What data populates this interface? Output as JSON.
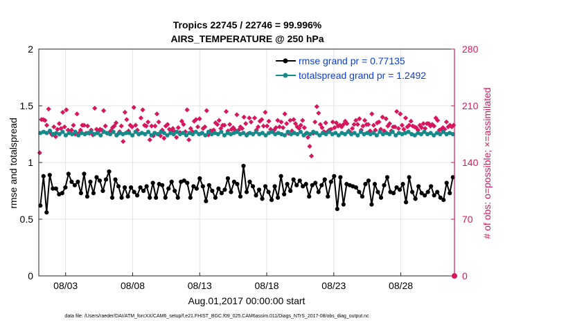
{
  "chart_data": {
    "type": "line",
    "title": "Tropics 22745 / 22746 = 99.996%",
    "subtitle": "AIRS_TEMPERATURE @ 250 hPa",
    "xlabel": "Aug.01,2017 00:00:00 start",
    "ylabel": "rmse and totalspread",
    "ylabel_right": "# of obs: o=possible; ×=assimilated",
    "footer": "data file: /Users/raeder/DAI/ATM_forcXX/CAM6_setup/f.e21.FHIST_BGC.f09_025.CAM6assim.011/Diags_NTrS_2017-08/obs_diag_output.nc",
    "x_tick_labels": [
      "08/03",
      "08/08",
      "08/13",
      "08/18",
      "08/23",
      "08/28"
    ],
    "x_tick_days": [
      3,
      8,
      13,
      18,
      23,
      28
    ],
    "xlim_days": [
      1,
      32
    ],
    "ylim": [
      0,
      2
    ],
    "y_ticks": [
      "0",
      "0.5",
      "1",
      "1.5",
      "2"
    ],
    "ylim_right": [
      0,
      280
    ],
    "y_ticks_right": [
      "0",
      "70",
      "140",
      "210",
      "280"
    ],
    "colors": {
      "rmse": "#000000",
      "spread": "#168a8a",
      "obs": "#d6175d",
      "legend_text": "#0b3ce8",
      "grid": "#e4e4e4"
    },
    "series": [
      {
        "name": "rmse grand pr = 0.77135",
        "axis": "left",
        "values": [
          0.62,
          0.88,
          0.56,
          0.89,
          0.77,
          0.77,
          0.72,
          0.73,
          0.78,
          0.9,
          0.83,
          0.8,
          0.83,
          0.73,
          0.9,
          0.7,
          0.83,
          0.73,
          0.87,
          0.84,
          0.75,
          0.85,
          0.92,
          0.69,
          0.85,
          0.79,
          0.69,
          0.78,
          0.7,
          0.78,
          0.74,
          0.71,
          0.78,
          0.75,
          0.79,
          0.69,
          0.82,
          0.69,
          0.81,
          0.8,
          0.69,
          0.77,
          0.83,
          0.75,
          0.69,
          0.83,
          0.84,
          0.82,
          0.69,
          0.79,
          0.77,
          0.86,
          0.79,
          0.66,
          0.8,
          0.75,
          0.69,
          0.77,
          0.73,
          0.76,
          0.86,
          0.74,
          0.83,
          0.81,
          0.7,
          0.97,
          0.74,
          0.83,
          0.79,
          0.71,
          0.76,
          0.68,
          0.79,
          0.74,
          0.67,
          0.79,
          0.69,
          0.88,
          0.72,
          0.81,
          0.75,
          0.85,
          0.8,
          0.84,
          0.79,
          0.81,
          0.7,
          0.8,
          0.82,
          0.74,
          0.8,
          0.85,
          0.7,
          0.83,
          0.88,
          0.59,
          0.87,
          0.63,
          0.81,
          0.8,
          0.79,
          0.78,
          0.74,
          0.7,
          0.81,
          0.84,
          0.63,
          0.81,
          0.74,
          0.69,
          0.8,
          0.87,
          0.74,
          0.73,
          0.78,
          0.76,
          0.81,
          0.65,
          0.87,
          0.74,
          0.68,
          0.79,
          0.73,
          0.71,
          0.74,
          0.79,
          0.71,
          0.74,
          0.69,
          0.67,
          0.82,
          0.73,
          0.87
        ]
      },
      {
        "name": "totalspread grand pr = 1.2492",
        "axis": "left",
        "values": [
          1.26,
          1.27,
          1.26,
          1.28,
          1.25,
          1.26,
          1.25,
          1.27,
          1.24,
          1.26,
          1.25,
          1.27,
          1.24,
          1.26,
          1.25,
          1.26,
          1.27,
          1.25,
          1.26,
          1.24,
          1.27,
          1.26,
          1.25,
          1.27,
          1.24,
          1.26,
          1.25,
          1.26,
          1.26,
          1.24,
          1.27,
          1.25,
          1.26,
          1.25,
          1.27,
          1.24,
          1.26,
          1.25,
          1.27,
          1.26,
          1.24,
          1.26,
          1.25,
          1.27,
          1.25,
          1.26,
          1.24,
          1.26,
          1.25,
          1.27,
          1.25,
          1.26,
          1.24,
          1.27,
          1.25,
          1.26,
          1.25,
          1.27,
          1.24,
          1.26,
          1.25,
          1.26,
          1.27,
          1.25,
          1.26,
          1.24,
          1.26,
          1.25,
          1.27,
          1.25,
          1.26,
          1.24,
          1.26,
          1.27,
          1.25,
          1.26,
          1.25,
          1.24,
          1.27,
          1.25,
          1.26,
          1.25,
          1.27,
          1.24,
          1.26,
          1.25,
          1.27,
          1.26,
          1.24,
          1.26,
          1.25,
          1.27,
          1.25,
          1.26,
          1.24,
          1.26,
          1.25,
          1.27,
          1.25,
          1.26,
          1.24,
          1.27,
          1.25,
          1.26,
          1.25,
          1.26,
          1.24,
          1.27,
          1.25,
          1.26,
          1.25,
          1.27,
          1.24,
          1.26,
          1.25,
          1.26,
          1.27,
          1.25,
          1.24,
          1.26,
          1.25,
          1.27,
          1.25,
          1.26,
          1.24,
          1.26,
          1.25,
          1.27,
          1.25,
          1.26,
          1.25
        ]
      },
      {
        "name": "obs count",
        "axis": "right",
        "type": "scatter",
        "values": [
          152,
          193,
          193,
          192,
          186,
          206,
          177,
          174,
          184,
          172,
          181,
          188,
          182,
          202,
          184,
          205,
          180,
          177,
          180,
          186,
          175,
          200,
          176,
          180,
          186,
          186,
          176,
          185,
          176,
          180,
          174,
          207,
          181,
          178,
          181,
          180,
          204,
          185,
          176,
          176,
          179,
          183,
          185,
          189,
          175,
          178,
          185,
          166,
          202,
          193,
          179,
          186,
          184,
          208,
          186,
          180,
          175,
          195,
          205,
          186,
          185,
          190,
          168,
          185,
          173,
          185,
          200,
          190,
          173,
          180,
          170,
          185,
          187,
          181,
          179,
          182,
          178,
          171,
          183,
          177,
          191,
          187,
          178,
          205,
          168,
          182,
          178,
          191,
          193,
          184,
          194,
          176,
          182,
          184,
          204,
          174,
          179,
          179,
          180,
          189,
          187,
          192,
          182,
          186,
          186,
          203,
          179,
          187,
          181,
          183,
          180,
          199,
          180,
          184,
          182,
          196,
          188,
          175,
          195,
          190,
          175,
          195,
          180,
          184,
          191,
          193,
          185,
          202,
          185,
          191,
          181,
          178,
          180,
          183,
          192,
          184,
          190,
          183,
          200,
          188,
          176,
          192,
          179,
          193,
          188,
          184,
          182,
          186,
          192,
          183,
          176,
          171,
          160,
          148,
          176,
          190,
          209,
          201,
          187,
          183,
          178,
          189,
          178,
          180,
          181,
          190,
          183,
          189,
          185,
          186,
          184,
          187,
          191,
          188,
          179,
          177,
          182,
          187,
          192,
          187,
          194,
          180,
          185,
          192,
          187,
          187,
          179,
          200,
          186,
          180,
          189,
          190,
          181,
          196,
          179,
          194,
          185,
          188,
          179,
          184,
          184,
          203,
          182,
          200,
          186,
          181,
          195,
          184,
          186,
          191,
          185,
          184,
          183,
          180,
          186,
          183,
          188,
          182,
          188,
          188,
          185,
          187,
          185,
          195,
          192,
          180,
          181,
          183,
          181,
          190,
          184,
          186,
          184,
          186
        ]
      }
    ]
  }
}
